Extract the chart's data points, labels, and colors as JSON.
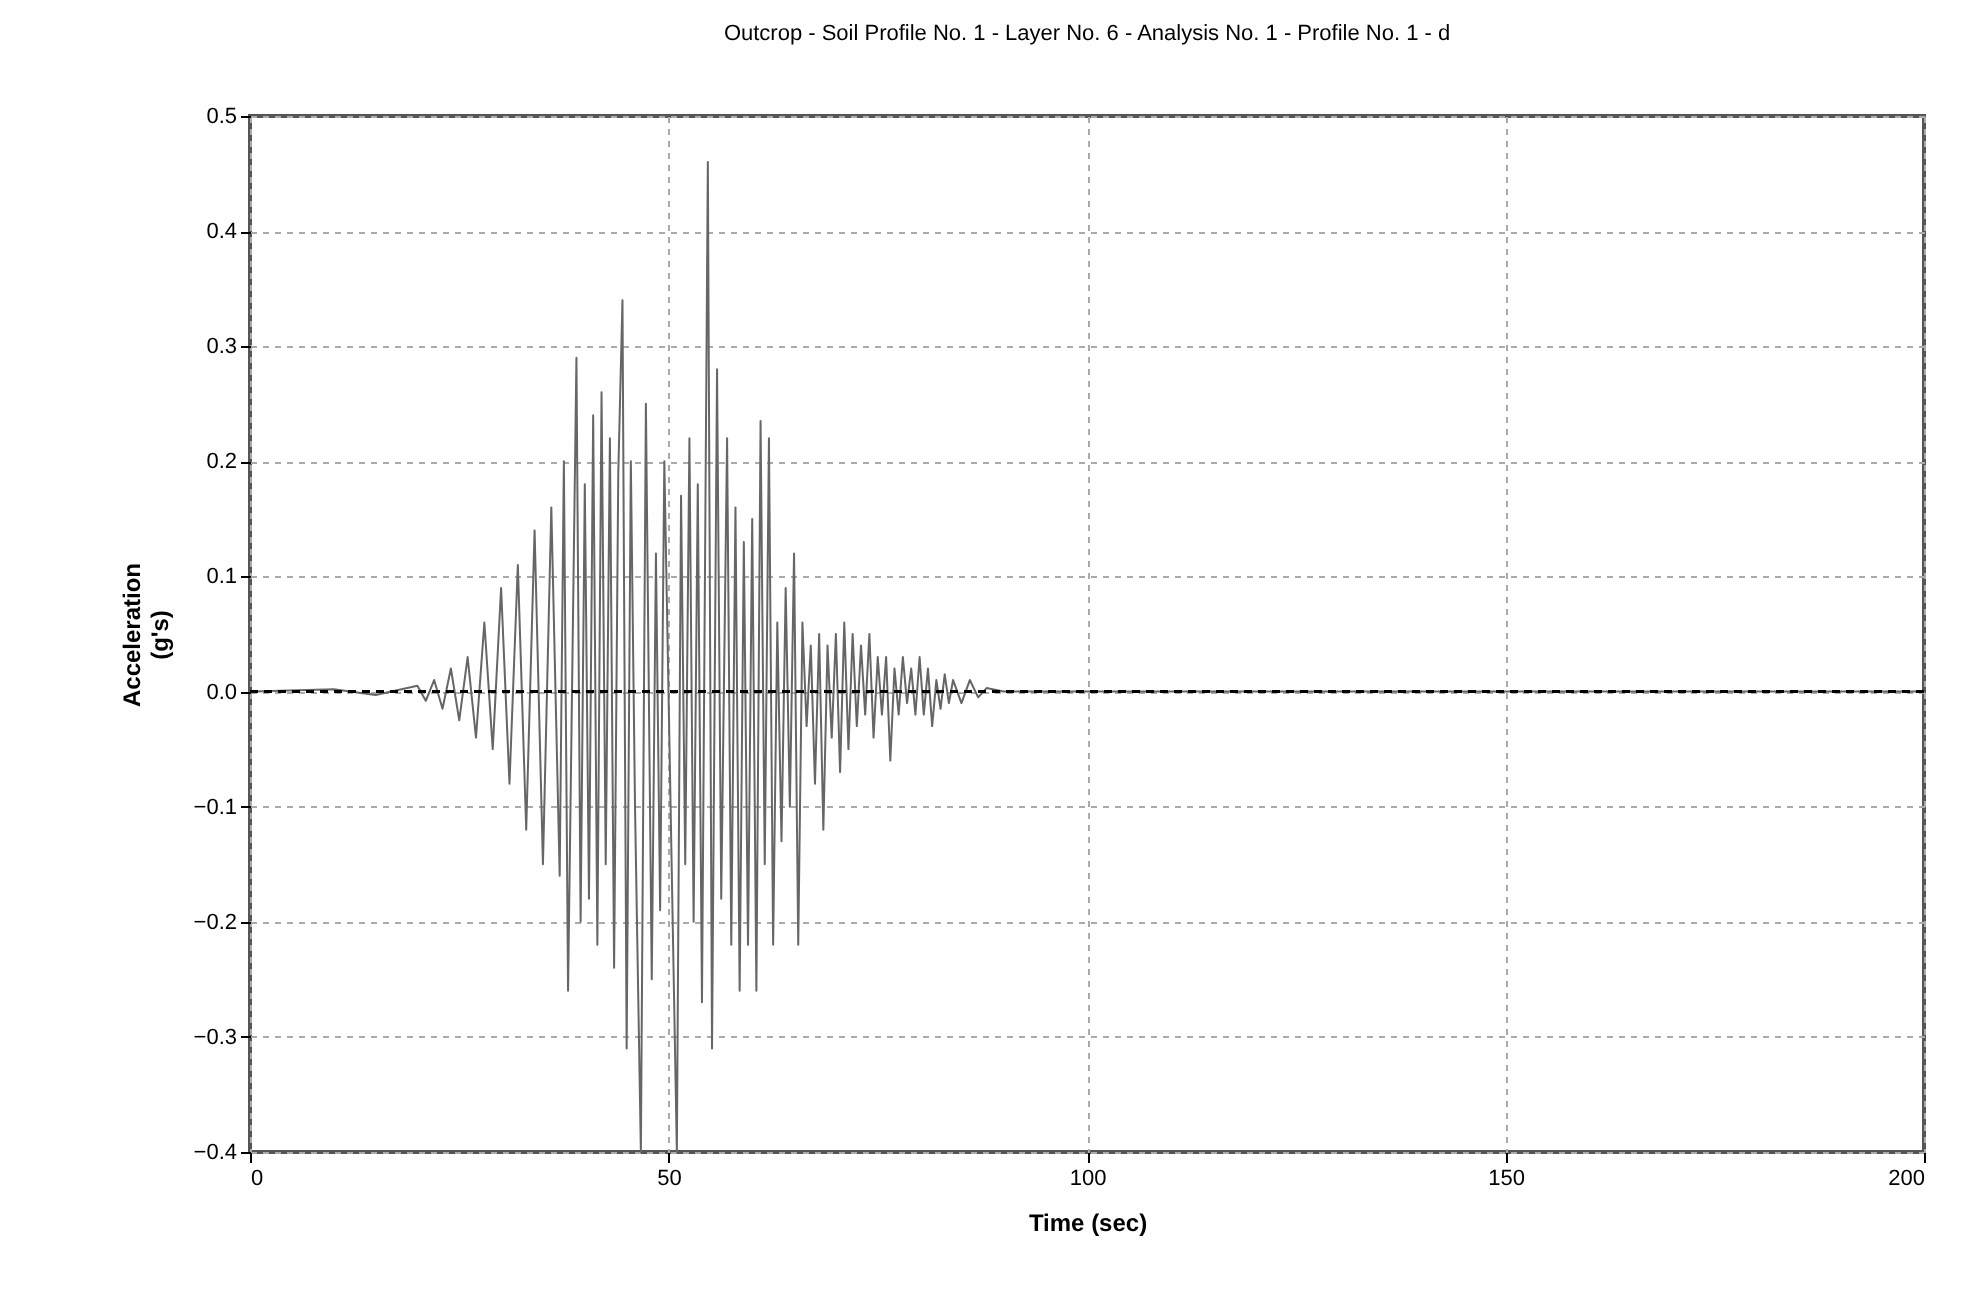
{
  "chart_data": {
    "type": "line",
    "title": "Outcrop - Soil Profile No.  1 - Layer No. 6 - Analysis No. 1 - Profile No. 1 - d",
    "xlabel": "Time (sec)",
    "ylabel": "Acceleration\n(g's)",
    "xlim": [
      0,
      200
    ],
    "xticks": [
      0,
      50,
      100,
      150,
      200
    ],
    "ylim": [
      -0.4,
      0.5
    ],
    "yticks": [
      -0.4,
      -0.3,
      -0.2,
      -0.1,
      {
        "value": 0,
        "label": "0.0"
      },
      0.1,
      0.2,
      0.3,
      0.4,
      0.5
    ],
    "grid": true,
    "marker": "none",
    "line_style": "solid",
    "ref_lines": [
      {
        "axis": "y",
        "value": 0,
        "label": null,
        "color": "#000000",
        "line_style": "dashed"
      }
    ],
    "series": [
      {
        "color": "#666666",
        "x": [
          0,
          10,
          15,
          20,
          21,
          22,
          23,
          24,
          25,
          26,
          27,
          28,
          29,
          30,
          31,
          32,
          33,
          34,
          35,
          36,
          37,
          37.5,
          38,
          39,
          39.5,
          40,
          40.5,
          41,
          41.5,
          42,
          42.5,
          43,
          43.5,
          44,
          44.5,
          45,
          45.5,
          46,
          46.7,
          47.3,
          48,
          48.5,
          49,
          49.5,
          51,
          51.5,
          52,
          52.5,
          53,
          53.5,
          54,
          54.7,
          55.2,
          55.8,
          56.3,
          57,
          57.5,
          58,
          58.5,
          59,
          59.5,
          60,
          60.5,
          61,
          61.5,
          62,
          62.5,
          63,
          63.5,
          64,
          64.5,
          65,
          65.5,
          66,
          66.5,
          67,
          67.5,
          68,
          68.5,
          69,
          69.5,
          70,
          70.5,
          71,
          71.5,
          72,
          72.5,
          73,
          73.5,
          74,
          74.5,
          75,
          75.5,
          76,
          76.5,
          77,
          77.5,
          78,
          78.5,
          79,
          79.5,
          80,
          80.5,
          81,
          81.5,
          82,
          82.5,
          83,
          83.5,
          84,
          85,
          86,
          87,
          88,
          90,
          200
        ],
        "values": [
          0,
          0.002,
          -0.003,
          0.005,
          -0.008,
          0.01,
          -0.015,
          0.02,
          -0.025,
          0.03,
          -0.04,
          0.06,
          -0.05,
          0.09,
          -0.08,
          0.11,
          -0.12,
          0.14,
          -0.15,
          0.16,
          -0.16,
          0.2,
          -0.26,
          0.29,
          -0.2,
          0.18,
          -0.18,
          0.24,
          -0.22,
          0.26,
          -0.15,
          0.22,
          -0.24,
          0.19,
          0.34,
          -0.31,
          0.2,
          -0.1,
          -0.4,
          0.25,
          -0.25,
          0.12,
          -0.19,
          0.2,
          -0.4,
          0.17,
          -0.15,
          0.22,
          -0.2,
          0.18,
          -0.27,
          0.46,
          -0.31,
          0.28,
          -0.18,
          0.22,
          -0.22,
          0.16,
          -0.26,
          0.13,
          -0.22,
          0.15,
          -0.26,
          0.235,
          -0.15,
          0.22,
          -0.22,
          0.06,
          -0.13,
          0.09,
          -0.1,
          0.12,
          -0.22,
          0.06,
          -0.03,
          0.04,
          -0.08,
          0.05,
          -0.12,
          0.04,
          -0.04,
          0.05,
          -0.07,
          0.06,
          -0.05,
          0.05,
          -0.03,
          0.04,
          -0.02,
          0.05,
          -0.04,
          0.03,
          -0.02,
          0.03,
          -0.06,
          0.02,
          -0.02,
          0.03,
          -0.01,
          0.02,
          -0.02,
          0.03,
          -0.02,
          0.02,
          -0.03,
          0.01,
          -0.015,
          0.015,
          -0.01,
          0.01,
          -0.01,
          0.01,
          -0.005,
          0.003,
          0,
          0
        ]
      }
    ]
  }
}
